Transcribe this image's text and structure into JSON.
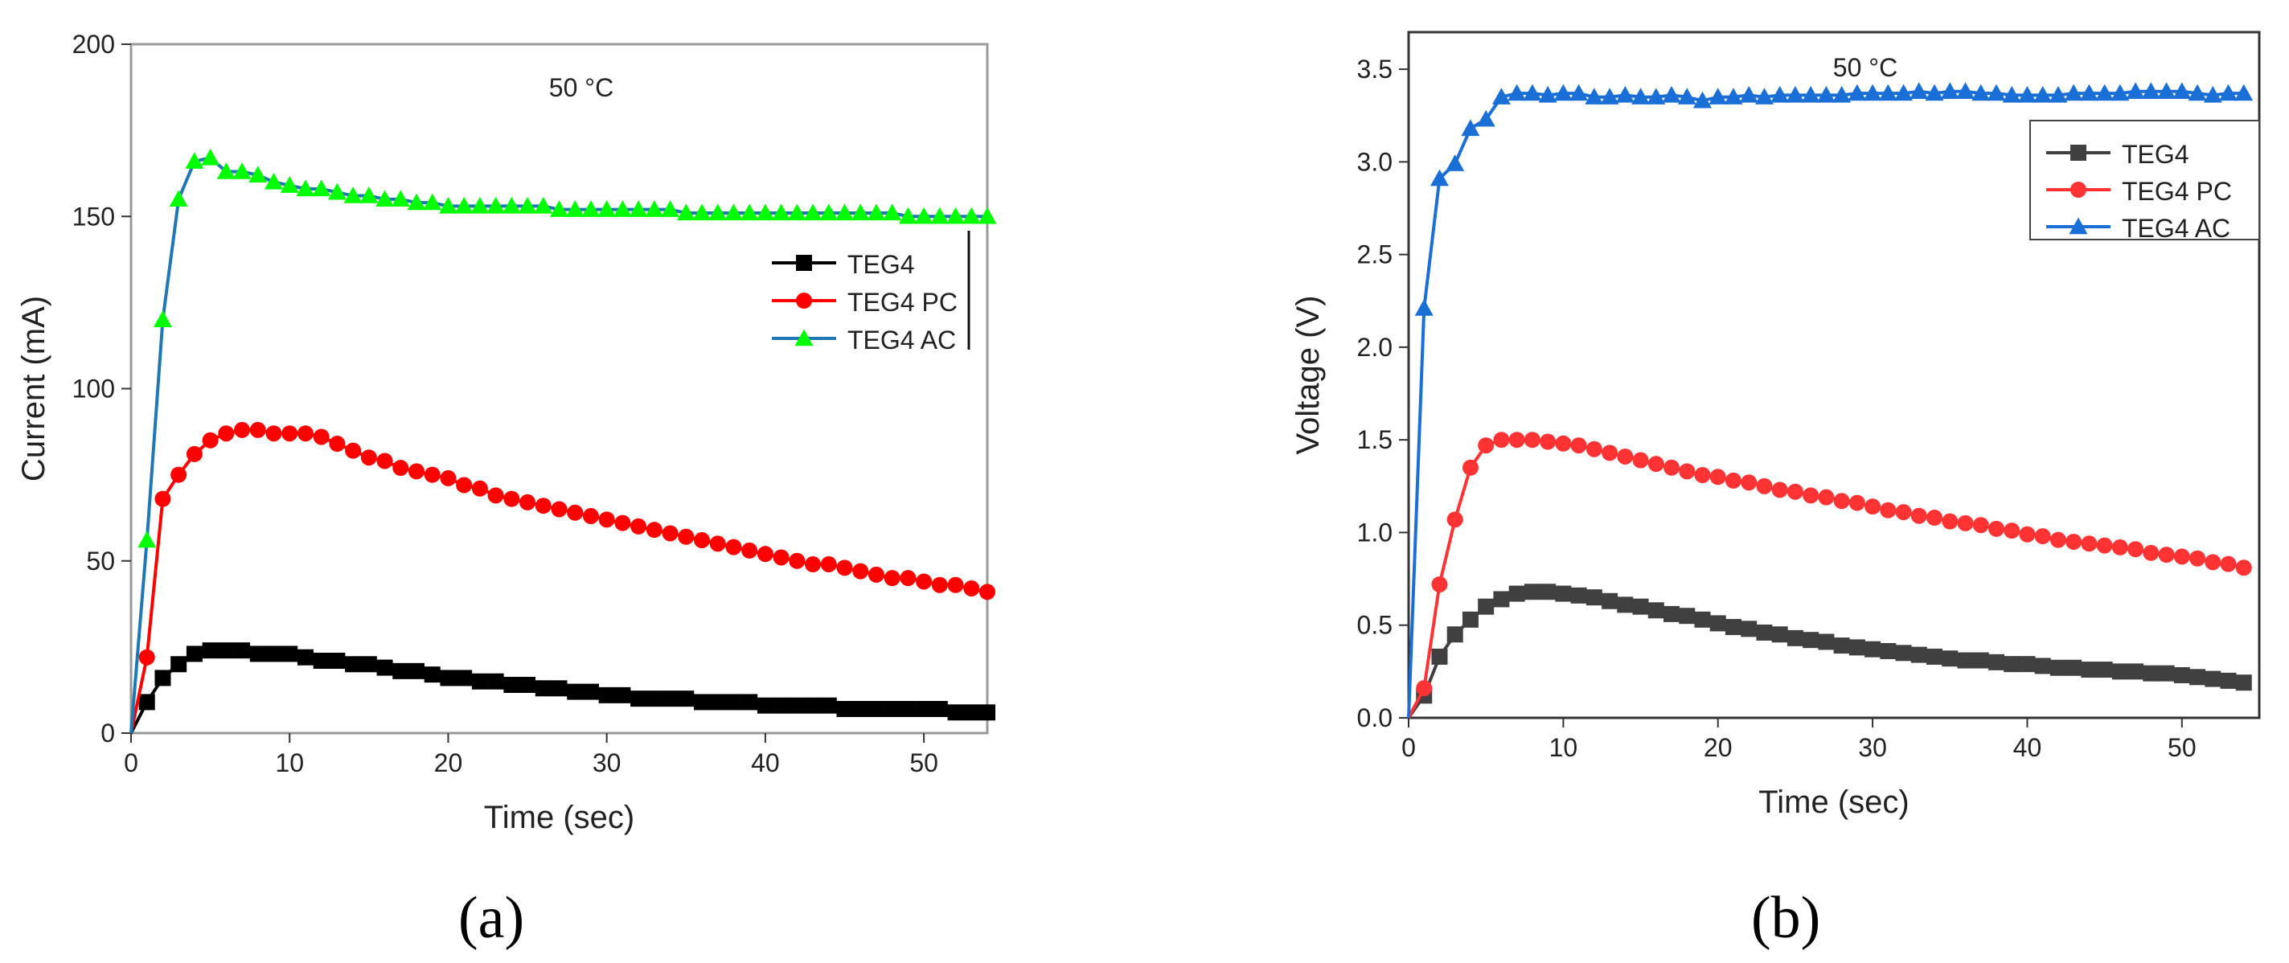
{
  "chart_data": [
    {
      "type": "line",
      "panel_label": "(a)",
      "annotation": "50 °C",
      "title": "",
      "xlabel": "Time (sec)",
      "ylabel": "Current (mA)",
      "xlim": [
        0,
        54
      ],
      "ylim": [
        0,
        200
      ],
      "xticks": [
        0,
        10,
        20,
        30,
        40,
        50
      ],
      "yticks": [
        0,
        50,
        100,
        150,
        200
      ],
      "grid": false,
      "legend_position": "center-right",
      "legend": [
        "TEG4",
        "TEG4 PC",
        "TEG4 AC"
      ],
      "x": [
        0,
        1,
        2,
        3,
        4,
        5,
        6,
        7,
        8,
        9,
        10,
        11,
        12,
        13,
        14,
        15,
        16,
        17,
        18,
        19,
        20,
        21,
        22,
        23,
        24,
        25,
        26,
        27,
        28,
        29,
        30,
        31,
        32,
        33,
        34,
        35,
        36,
        37,
        38,
        39,
        40,
        41,
        42,
        43,
        44,
        45,
        46,
        47,
        48,
        49,
        50,
        51,
        52,
        53,
        54
      ],
      "series": [
        {
          "name": "TEG4",
          "color": "#000000",
          "marker": "square",
          "values": [
            0,
            9,
            16,
            20,
            23,
            24,
            24,
            24,
            23,
            23,
            23,
            22,
            21,
            21,
            20,
            20,
            19,
            18,
            18,
            17,
            16,
            16,
            15,
            15,
            14,
            14,
            13,
            13,
            12,
            12,
            11,
            11,
            10,
            10,
            10,
            10,
            9,
            9,
            9,
            9,
            8,
            8,
            8,
            8,
            8,
            7,
            7,
            7,
            7,
            7,
            7,
            7,
            6,
            6,
            6
          ]
        },
        {
          "name": "TEG4 PC",
          "color": "#ff0000",
          "marker": "circle",
          "values": [
            0,
            22,
            68,
            75,
            81,
            85,
            87,
            88,
            88,
            87,
            87,
            87,
            86,
            84,
            82,
            80,
            79,
            77,
            76,
            75,
            74,
            72,
            71,
            69,
            68,
            67,
            66,
            65,
            64,
            63,
            62,
            61,
            60,
            59,
            58,
            57,
            56,
            55,
            54,
            53,
            52,
            51,
            50,
            49,
            49,
            48,
            47,
            46,
            45,
            45,
            44,
            43,
            43,
            42,
            41
          ]
        },
        {
          "name": "TEG4 AC",
          "color": "#00ff00",
          "line_color": "#1f77b4",
          "marker": "triangle",
          "values": [
            0,
            56,
            120,
            155,
            166,
            167,
            163,
            163,
            162,
            160,
            159,
            158,
            158,
            157,
            156,
            156,
            155,
            155,
            154,
            154,
            153,
            153,
            153,
            153,
            153,
            153,
            153,
            152,
            152,
            152,
            152,
            152,
            152,
            152,
            152,
            151,
            151,
            151,
            151,
            151,
            151,
            151,
            151,
            151,
            151,
            151,
            151,
            151,
            151,
            150,
            150,
            150,
            150,
            150,
            150
          ]
        }
      ]
    },
    {
      "type": "line",
      "panel_label": "(b)",
      "annotation": "50 °C",
      "title": "",
      "xlabel": "Time (sec)",
      "ylabel": "Voltage (V)",
      "xlim": [
        0,
        55
      ],
      "ylim": [
        0,
        3.7
      ],
      "xticks": [
        0,
        10,
        20,
        30,
        40,
        50
      ],
      "xtick_labels": [
        "0",
        "10",
        "20",
        "30",
        "40",
        "50"
      ],
      "yticks": [
        0,
        0.5,
        1.0,
        1.5,
        2.0,
        2.5,
        3.0,
        3.5
      ],
      "ytick_labels": [
        "0.0",
        "0.5",
        "1.0",
        "1.5",
        "2.0",
        "2.5",
        "3.0",
        "3.5"
      ],
      "grid": false,
      "legend_position": "top-right",
      "legend": [
        "TEG4",
        "TEG4 PC",
        "TEG4 AC"
      ],
      "x": [
        0,
        1,
        2,
        3,
        4,
        5,
        6,
        7,
        8,
        9,
        10,
        11,
        12,
        13,
        14,
        15,
        16,
        17,
        18,
        19,
        20,
        21,
        22,
        23,
        24,
        25,
        26,
        27,
        28,
        29,
        30,
        31,
        32,
        33,
        34,
        35,
        36,
        37,
        38,
        39,
        40,
        41,
        42,
        43,
        44,
        45,
        46,
        47,
        48,
        49,
        50,
        51,
        52,
        53,
        54
      ],
      "series": [
        {
          "name": "TEG4",
          "color": "#404040",
          "marker": "square",
          "values": [
            0,
            0.12,
            0.33,
            0.45,
            0.53,
            0.6,
            0.64,
            0.67,
            0.68,
            0.68,
            0.67,
            0.66,
            0.65,
            0.63,
            0.61,
            0.6,
            0.58,
            0.56,
            0.55,
            0.53,
            0.51,
            0.49,
            0.48,
            0.46,
            0.45,
            0.43,
            0.42,
            0.41,
            0.39,
            0.38,
            0.37,
            0.36,
            0.35,
            0.34,
            0.33,
            0.32,
            0.31,
            0.31,
            0.3,
            0.29,
            0.29,
            0.28,
            0.27,
            0.27,
            0.26,
            0.26,
            0.25,
            0.25,
            0.24,
            0.24,
            0.23,
            0.22,
            0.21,
            0.2,
            0.19
          ]
        },
        {
          "name": "TEG4 PC",
          "color": "#ff3333",
          "marker": "circle",
          "values": [
            0,
            0.16,
            0.72,
            1.07,
            1.35,
            1.47,
            1.5,
            1.5,
            1.5,
            1.49,
            1.48,
            1.47,
            1.45,
            1.43,
            1.41,
            1.39,
            1.37,
            1.35,
            1.33,
            1.31,
            1.3,
            1.28,
            1.27,
            1.25,
            1.23,
            1.22,
            1.2,
            1.19,
            1.17,
            1.16,
            1.14,
            1.12,
            1.11,
            1.09,
            1.08,
            1.06,
            1.05,
            1.04,
            1.02,
            1.01,
            0.99,
            0.98,
            0.96,
            0.95,
            0.94,
            0.93,
            0.92,
            0.91,
            0.89,
            0.88,
            0.87,
            0.86,
            0.84,
            0.83,
            0.81
          ]
        },
        {
          "name": "TEG4 AC",
          "color": "#1a6fd6",
          "marker": "triangle",
          "values": [
            0,
            2.21,
            2.91,
            2.99,
            3.18,
            3.23,
            3.35,
            3.37,
            3.37,
            3.36,
            3.37,
            3.37,
            3.35,
            3.35,
            3.36,
            3.35,
            3.35,
            3.36,
            3.35,
            3.33,
            3.35,
            3.35,
            3.36,
            3.35,
            3.36,
            3.36,
            3.36,
            3.36,
            3.36,
            3.37,
            3.37,
            3.37,
            3.37,
            3.38,
            3.37,
            3.38,
            3.38,
            3.37,
            3.37,
            3.36,
            3.36,
            3.36,
            3.36,
            3.37,
            3.37,
            3.37,
            3.37,
            3.38,
            3.38,
            3.38,
            3.38,
            3.37,
            3.36,
            3.37,
            3.37
          ]
        }
      ]
    }
  ]
}
